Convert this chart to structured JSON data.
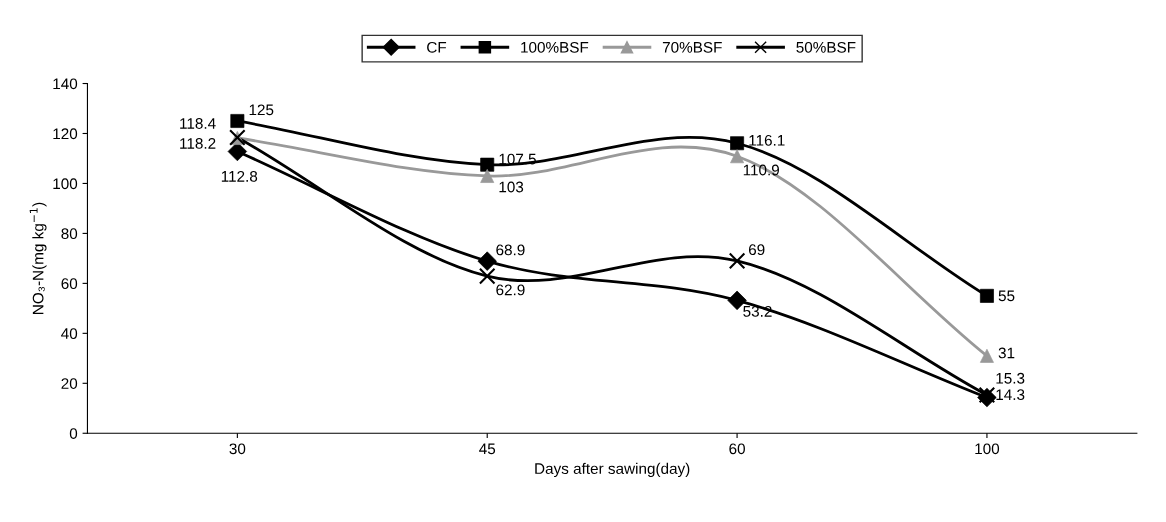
{
  "chart_data": {
    "type": "line",
    "xlabel": "Days after sawing(day)",
    "ylabel": "NO₃-N(mg kg$^{−1}$)",
    "categories": [
      "30",
      "45",
      "60",
      "100"
    ],
    "series": [
      {
        "name": "CF",
        "color": "#000000",
        "marker": "diamond",
        "values": [
          112.8,
          68.9,
          53.2,
          14.3
        ]
      },
      {
        "name": "100%BSF",
        "color": "#000000",
        "marker": "square",
        "values": [
          125,
          107.5,
          116.1,
          55
        ]
      },
      {
        "name": "70%BSF",
        "color": "#999999",
        "marker": "triangle",
        "values": [
          118.2,
          103,
          110.9,
          31
        ]
      },
      {
        "name": "50%BSF",
        "color": "#000000",
        "marker": "cross",
        "values": [
          118.4,
          62.9,
          69,
          15.3
        ]
      }
    ],
    "ylim": [
      0,
      140
    ],
    "yticks": [
      0,
      20,
      40,
      60,
      80,
      100,
      120,
      140
    ],
    "data_labels": true,
    "legend": "top",
    "grid": false,
    "line_style": "solid"
  }
}
